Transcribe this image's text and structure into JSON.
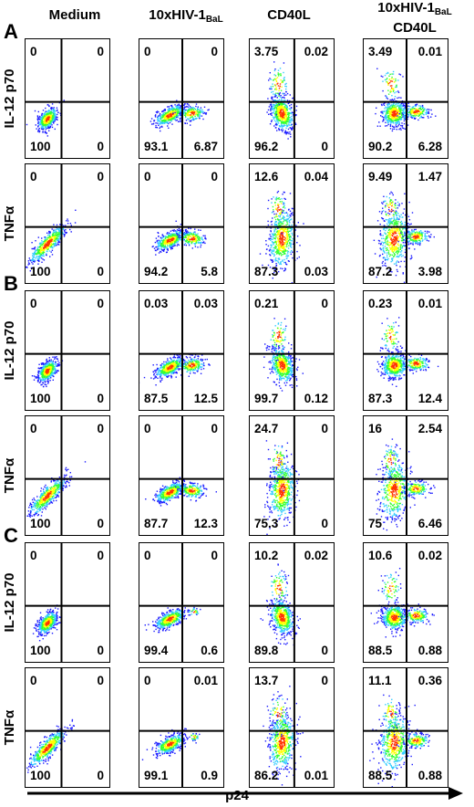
{
  "columns": [
    {
      "line1": "Medium",
      "line2": ""
    },
    {
      "line1": "10xHIV-1",
      "sub": "BaL",
      "line2": ""
    },
    {
      "line1": "CD40L",
      "line2": ""
    },
    {
      "line1": "10xHIV-1",
      "sub": "BaL",
      "line2": "CD40L"
    }
  ],
  "x_axis_label": "p24",
  "sections": [
    {
      "label": "A",
      "rows": [
        {
          "label": "IL-12 p70",
          "panels": [
            {
              "ul": "0",
              "ur": "0",
              "ll": "100",
              "lr": "0"
            },
            {
              "ul": "0",
              "ur": "0",
              "ll": "93.1",
              "lr": "6.87"
            },
            {
              "ul": "3.75",
              "ur": "0.02",
              "ll": "96.2",
              "lr": "0"
            },
            {
              "ul": "3.49",
              "ur": "0.01",
              "ll": "90.2",
              "lr": "6.28"
            }
          ]
        },
        {
          "label": "TNFα",
          "panels": [
            {
              "ul": "0",
              "ur": "0",
              "ll": "100",
              "lr": "0"
            },
            {
              "ul": "0",
              "ur": "0",
              "ll": "94.2",
              "lr": "5.8"
            },
            {
              "ul": "12.6",
              "ur": "0.04",
              "ll": "87.3",
              "lr": "0.03"
            },
            {
              "ul": "9.49",
              "ur": "1.47",
              "ll": "87.2",
              "lr": "3.98"
            }
          ]
        }
      ]
    },
    {
      "label": "B",
      "rows": [
        {
          "label": "IL-12 p70",
          "panels": [
            {
              "ul": "0",
              "ur": "0",
              "ll": "100",
              "lr": "0"
            },
            {
              "ul": "0.03",
              "ur": "0.03",
              "ll": "87.5",
              "lr": "12.5"
            },
            {
              "ul": "0.21",
              "ur": "0",
              "ll": "99.7",
              "lr": "0.12"
            },
            {
              "ul": "0.23",
              "ur": "0.01",
              "ll": "87.3",
              "lr": "12.4"
            }
          ]
        },
        {
          "label": "TNFα",
          "panels": [
            {
              "ul": "0",
              "ur": "0",
              "ll": "100",
              "lr": "0"
            },
            {
              "ul": "0",
              "ur": "0",
              "ll": "87.7",
              "lr": "12.3"
            },
            {
              "ul": "24.7",
              "ur": "0",
              "ll": "75.3",
              "lr": "0"
            },
            {
              "ul": "16",
              "ur": "2.54",
              "ll": "75",
              "lr": "6.46"
            }
          ]
        }
      ]
    },
    {
      "label": "C",
      "rows": [
        {
          "label": "IL-12 p70",
          "panels": [
            {
              "ul": "0",
              "ur": "0",
              "ll": "100",
              "lr": "0"
            },
            {
              "ul": "0",
              "ur": "0",
              "ll": "99.4",
              "lr": "0.6"
            },
            {
              "ul": "10.2",
              "ur": "0.02",
              "ll": "89.8",
              "lr": "0"
            },
            {
              "ul": "10.6",
              "ur": "0.02",
              "ll": "88.5",
              "lr": "0.88"
            }
          ]
        },
        {
          "label": "TNFα",
          "panels": [
            {
              "ul": "0",
              "ur": "0",
              "ll": "100",
              "lr": "0"
            },
            {
              "ul": "0",
              "ur": "0.01",
              "ll": "99.1",
              "lr": "0.9"
            },
            {
              "ul": "13.7",
              "ur": "0",
              "ll": "86.2",
              "lr": "0.01"
            },
            {
              "ul": "11.1",
              "ur": "0.36",
              "ll": "88.5",
              "lr": "0.88"
            }
          ]
        }
      ]
    }
  ],
  "colors": {
    "low": "#1a1aff",
    "mid": "#33ccff",
    "high1": "#33ff33",
    "high2": "#ffff00",
    "peak": "#ff3300"
  }
}
